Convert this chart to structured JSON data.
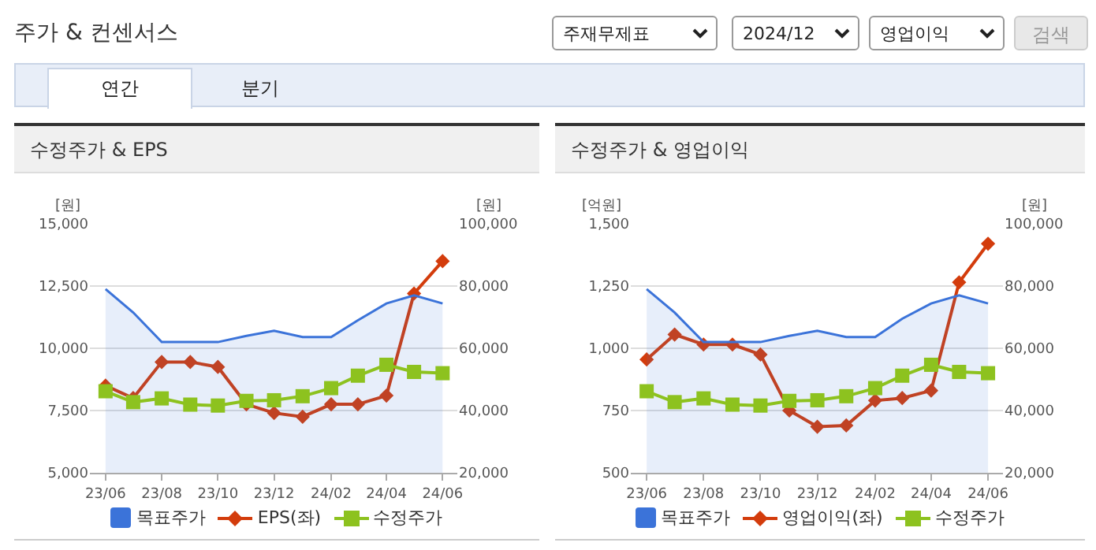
{
  "chart_data": [
    {
      "type": "other",
      "title": "주가 & 컨센서스",
      "annotations": [
        "주재무제표",
        "2024/12",
        "영업이익",
        "검색",
        "연간",
        "분기"
      ]
    },
    {
      "type": "line",
      "title": "수정주가 & EPS",
      "ylabel": "[원]",
      "y2label": "[원]",
      "legend": "bottom",
      "grid": "y",
      "x": [
        "2023-06",
        "2023-07",
        "2023-08",
        "2023-09",
        "2023-10",
        "2023-11",
        "2023-12",
        "2024-01",
        "2024-02",
        "2024-03",
        "2024-04",
        "2024-05",
        "2024-06"
      ],
      "xlim": [
        "2023-05-15",
        "2024-06-17"
      ],
      "xticks": [
        {
          "value": "2023-06",
          "label": "23/06"
        },
        {
          "value": "2023-08",
          "label": "23/08"
        },
        {
          "value": "2023-10",
          "label": "23/10"
        },
        {
          "value": "2023-12",
          "label": "23/12"
        },
        {
          "value": "2024-02",
          "label": "24/02"
        },
        {
          "value": "2024-04",
          "label": "24/04"
        },
        {
          "value": "2024-06",
          "label": "24/06"
        }
      ],
      "ylim": [
        5000,
        15000
      ],
      "yticks": [
        {
          "value": 5000,
          "label": "5,000"
        },
        {
          "value": 7500,
          "label": "7,500"
        },
        {
          "value": 10000,
          "label": "10,000"
        },
        {
          "value": 12500,
          "label": "12,500"
        },
        {
          "value": 15000,
          "label": "15,000"
        }
      ],
      "y2lim": [
        20000,
        100000
      ],
      "y2ticks": [
        {
          "value": 20000,
          "label": "20,000"
        },
        {
          "value": 40000,
          "label": "40,000"
        },
        {
          "value": 60000,
          "label": "60,000"
        },
        {
          "value": 80000,
          "label": "80,000"
        },
        {
          "value": 100000,
          "label": "100,000"
        }
      ],
      "series": [
        {
          "name": "목표주가",
          "type": "area",
          "axis": "y2",
          "color": "#3b73d9",
          "marker": "none",
          "values": [
            79000,
            71500,
            62000,
            62000,
            62000,
            64000,
            65600,
            63600,
            63600,
            69000,
            74400,
            77000,
            74400
          ]
        },
        {
          "name": "EPS(좌)",
          "type": "line",
          "color": "#d33c0c",
          "marker": "diamond",
          "values": [
            8500,
            8000,
            9450,
            9450,
            9250,
            7750,
            7400,
            7250,
            7750,
            7750,
            8100,
            12200,
            13500
          ]
        },
        {
          "name": "수정주가",
          "type": "line",
          "axis": "y2",
          "color": "#8dc21f",
          "marker": "square",
          "values": [
            46200,
            42700,
            43900,
            41900,
            41600,
            43100,
            43300,
            44600,
            47200,
            51200,
            54700,
            52400,
            52000
          ]
        }
      ]
    },
    {
      "type": "line",
      "title": "수정주가 & 영업이익",
      "ylabel": "[억원]",
      "y2label": "[원]",
      "legend": "bottom",
      "grid": "y",
      "x": [
        "2023-06",
        "2023-07",
        "2023-08",
        "2023-09",
        "2023-10",
        "2023-11",
        "2023-12",
        "2024-01",
        "2024-02",
        "2024-03",
        "2024-04",
        "2024-05",
        "2024-06"
      ],
      "xlim": [
        "2023-05-15",
        "2024-06-17"
      ],
      "xticks": [
        {
          "value": "2023-06",
          "label": "23/06"
        },
        {
          "value": "2023-08",
          "label": "23/08"
        },
        {
          "value": "2023-10",
          "label": "23/10"
        },
        {
          "value": "2023-12",
          "label": "23/12"
        },
        {
          "value": "2024-02",
          "label": "24/02"
        },
        {
          "value": "2024-04",
          "label": "24/04"
        },
        {
          "value": "2024-06",
          "label": "24/06"
        }
      ],
      "ylim": [
        500,
        1500
      ],
      "yticks": [
        500,
        750,
        {
          "value": 1000,
          "label": "1,000"
        },
        {
          "value": 1250,
          "label": "1,250"
        },
        {
          "value": 1500,
          "label": "1,500"
        }
      ],
      "y2lim": [
        20000,
        100000
      ],
      "y2ticks": [
        {
          "value": 20000,
          "label": "20,000"
        },
        {
          "value": 40000,
          "label": "40,000"
        },
        {
          "value": 60000,
          "label": "60,000"
        },
        {
          "value": 80000,
          "label": "80,000"
        },
        {
          "value": 100000,
          "label": "100,000"
        }
      ],
      "series": [
        {
          "name": "목표주가",
          "type": "area",
          "axis": "y2",
          "color": "#3b73d9",
          "marker": "none",
          "values": [
            79000,
            71500,
            62000,
            62000,
            62000,
            64000,
            65600,
            63600,
            63600,
            69500,
            74400,
            77000,
            74400
          ]
        },
        {
          "name": "영업이익(좌)",
          "type": "line",
          "color": "#d33c0c",
          "marker": "diamond",
          "values": [
            955,
            1055,
            1015,
            1015,
            975,
            750,
            685,
            690,
            790,
            800,
            830,
            1265,
            1420
          ]
        },
        {
          "name": "수정주가",
          "type": "line",
          "axis": "y2",
          "color": "#8dc21f",
          "marker": "square",
          "values": [
            46200,
            42700,
            43900,
            41900,
            41600,
            43100,
            43300,
            44600,
            47200,
            51200,
            54700,
            52400,
            52000
          ]
        }
      ]
    }
  ]
}
